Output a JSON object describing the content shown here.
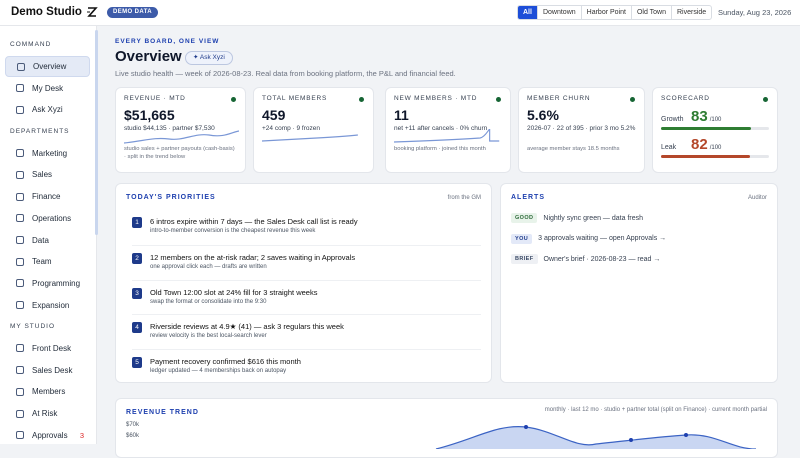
{
  "header": {
    "brand": "Demo Studio",
    "badge": "DEMO DATA",
    "tabs": [
      "All",
      "Downtown",
      "Harbor Point",
      "Old Town",
      "Riverside"
    ],
    "date": "Sunday, Aug 23, 2026"
  },
  "sidebar": {
    "sections": [
      {
        "title": "COMMAND",
        "items": [
          {
            "label": "Overview"
          },
          {
            "label": "My Desk"
          },
          {
            "label": "Ask Xyzi"
          }
        ]
      },
      {
        "title": "DEPARTMENTS",
        "items": [
          {
            "label": "Marketing"
          },
          {
            "label": "Sales"
          },
          {
            "label": "Finance"
          },
          {
            "label": "Operations"
          },
          {
            "label": "Data"
          },
          {
            "label": "Team"
          },
          {
            "label": "Programming"
          },
          {
            "label": "Expansion"
          }
        ]
      },
      {
        "title": "MY STUDIO",
        "items": [
          {
            "label": "Front Desk"
          },
          {
            "label": "Sales Desk"
          },
          {
            "label": "Members"
          },
          {
            "label": "At Risk"
          },
          {
            "label": "Approvals",
            "count": 3
          }
        ]
      }
    ]
  },
  "page": {
    "eyebrow": "EVERY BOARD, ONE VIEW",
    "title": "Overview",
    "button": "✦ Ask Xyzi",
    "subtitle": "Live studio health — week of 2026-08-23. Real data from booking platform, the P&L and financial feed."
  },
  "kpis": [
    {
      "label": "REVENUE · MTD",
      "value": "$51,665",
      "detail": "studio $44,135 · partner $7,530",
      "note": "studio sales + partner payouts (cash-basis) · split in the trend below"
    },
    {
      "label": "TOTAL MEMBERS",
      "value": "459",
      "detail": "+24 comp · 9 frozen"
    },
    {
      "label": "NEW MEMBERS · MTD",
      "value": "11",
      "detail": "net +11 after cancels · 0% churn",
      "note": "booking platform · joined this month"
    },
    {
      "label": "MEMBER CHURN",
      "value": "5.6%",
      "detail": "2026-07 · 22 of 395 · prior 3 mo 5.2%",
      "note": "average member stays 18.5 months"
    }
  ],
  "scorecard": {
    "title": "SCORECARD",
    "rows": [
      {
        "label": "Growth",
        "score": 83,
        "out_of": "/100",
        "color": "#2e7d32"
      },
      {
        "label": "Leak",
        "score": 82,
        "out_of": "/100",
        "color": "#b4472a"
      }
    ]
  },
  "priorities": {
    "title": "TODAY'S PRIORITIES",
    "source": "from the GM",
    "items": [
      {
        "num": 1,
        "title": "6 intros expire within 7 days — the Sales Desk call list is ready",
        "sub": "intro-to-member conversion is the cheapest revenue this week"
      },
      {
        "num": 2,
        "title": "12 members on the at-risk radar; 2 saves waiting in Approvals",
        "sub": "one approval click each — drafts are written"
      },
      {
        "num": 3,
        "title": "Old Town 12:00 slot at 24% fill for 3 straight weeks",
        "sub": "swap the format or consolidate into the 9:30"
      },
      {
        "num": 4,
        "title": "Riverside reviews at 4.9★ (41) — ask 3 regulars this week",
        "sub": "review velocity is the best local-search lever"
      },
      {
        "num": 5,
        "title": "Payment recovery confirmed $616 this month",
        "sub": "ledger updated — 4 memberships back on autopay"
      }
    ]
  },
  "alerts": {
    "title": "ALERTS",
    "source": "Auditor",
    "items": [
      {
        "tag": "GOOD",
        "text": "Nightly sync green — data fresh"
      },
      {
        "tag": "YOU",
        "text": "3 approvals waiting — open Approvals →"
      },
      {
        "tag": "BRIEF",
        "text": "Owner's brief · 2026-08-23 — read →"
      }
    ]
  },
  "trend": {
    "title": "REVENUE TREND",
    "note": "monthly · last 12 mo · studio + partner total (split on Finance) · current month partial",
    "ylabels": [
      "$70k",
      "$60k"
    ]
  }
}
